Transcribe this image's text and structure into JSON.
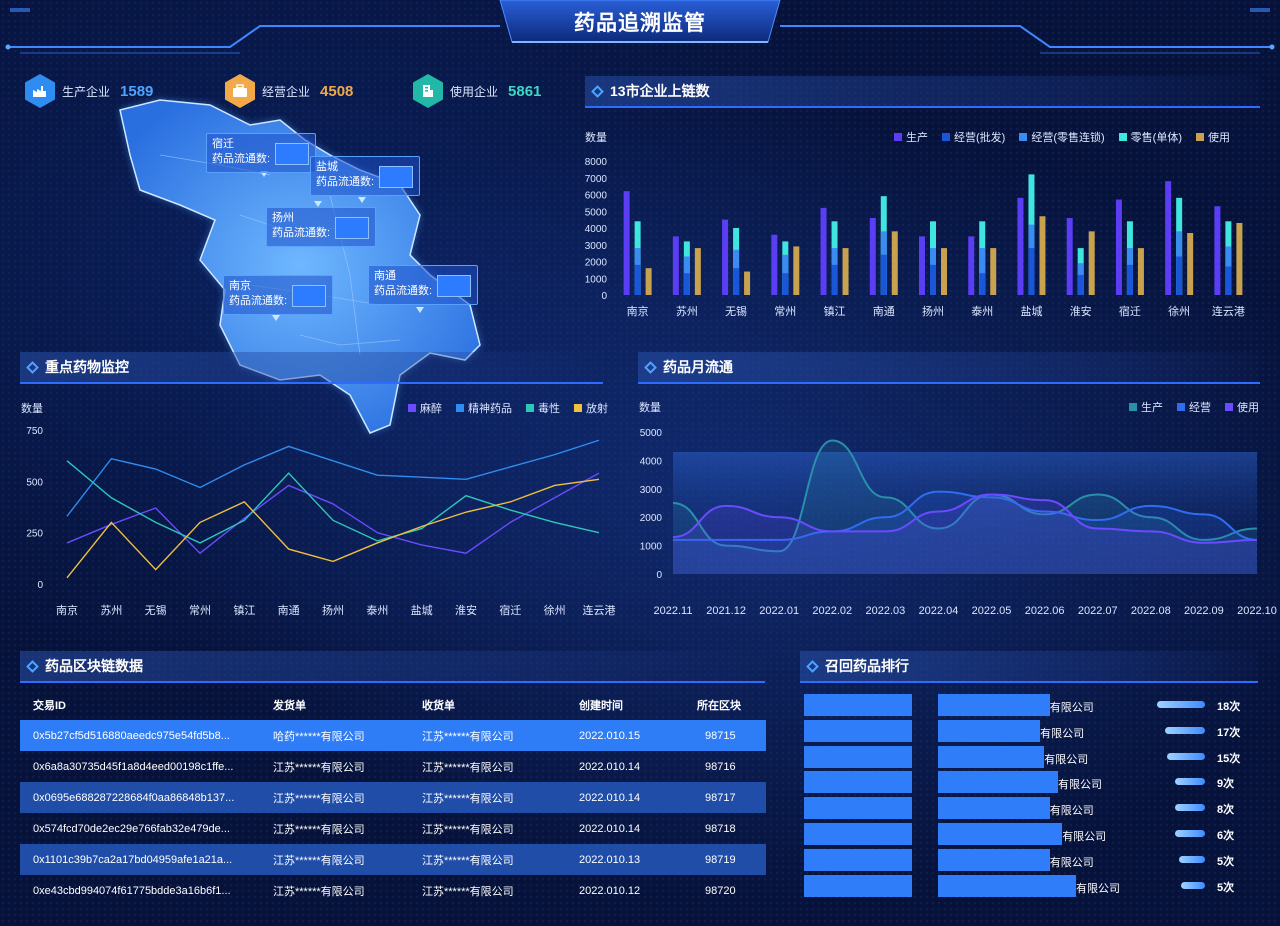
{
  "page_title": "药品追溯监管",
  "kpis": [
    {
      "label": "生产企业",
      "value": "1589",
      "color": "#4da3ff",
      "icon": "factory-icon",
      "icon_bg": "#2f8cf0"
    },
    {
      "label": "经营企业",
      "value": "4508",
      "color": "#f2a94a",
      "icon": "briefcase-icon",
      "icon_bg": "#f2a94a"
    },
    {
      "label": "使用企业",
      "value": "5861",
      "color": "#3fd7c4",
      "icon": "building-icon",
      "icon_bg": "#21b8a8"
    }
  ],
  "map": {
    "cities": [
      {
        "name": "宿迁",
        "label": "药品流通数:"
      },
      {
        "name": "盐城",
        "label": "药品流通数:"
      },
      {
        "name": "扬州",
        "label": "药品流通数:"
      },
      {
        "name": "南京",
        "label": "药品流通数:"
      },
      {
        "name": "南通",
        "label": "药品流通数:"
      }
    ]
  },
  "panels": {
    "chain_title": "13市企业上链数",
    "monitor_title": "重点药物监控",
    "flow_title": "药品月流通",
    "blockchain_title": "药品区块链数据",
    "recall_title": "召回药品排行"
  },
  "chart_data": [
    {
      "type": "bar",
      "ylabel": "数量",
      "ylim": [
        0,
        8000
      ],
      "yticks": [
        "8000",
        "7000",
        "6000",
        "5000",
        "4000",
        "3000",
        "2000",
        "1000",
        "0"
      ],
      "categories": [
        "南京",
        "苏州",
        "无锡",
        "常州",
        "镇江",
        "南通",
        "扬州",
        "泰州",
        "盐城",
        "淮安",
        "宿迁",
        "徐州",
        "连云港"
      ],
      "series": [
        {
          "name": "生产",
          "color": "#5b3df5",
          "values": [
            6200,
            3500,
            4500,
            3600,
            5200,
            4600,
            3500,
            3500,
            5800,
            4600,
            5700,
            6800,
            5300
          ]
        },
        {
          "name": "经营(批发)",
          "color": "#1a56d8",
          "values": [
            1800,
            1300,
            1600,
            1300,
            1800,
            2400,
            1800,
            1300,
            2800,
            1200,
            1800,
            2300,
            1700
          ]
        },
        {
          "name": "经营(零售连锁)",
          "color": "#3a8cf0",
          "values": [
            2800,
            2300,
            2700,
            2400,
            2800,
            3800,
            2800,
            2800,
            4200,
            1900,
            2800,
            3800,
            2900
          ]
        },
        {
          "name": "零售(单体)",
          "color": "#3fe6e0",
          "values": [
            4400,
            3200,
            4000,
            3200,
            4400,
            5900,
            4400,
            4400,
            7200,
            2800,
            4400,
            5800,
            4400
          ]
        },
        {
          "name": "使用",
          "color": "#c9a24f",
          "values": [
            1600,
            2800,
            1400,
            2900,
            2800,
            3800,
            2800,
            2800,
            4700,
            3800,
            2800,
            3700,
            4300
          ]
        }
      ]
    },
    {
      "type": "line",
      "ylabel": "数量",
      "ylim": [
        0,
        750
      ],
      "yticks": [
        "750",
        "500",
        "250",
        "0"
      ],
      "categories": [
        "南京",
        "苏州",
        "无锡",
        "常州",
        "镇江",
        "南通",
        "扬州",
        "泰州",
        "盐城",
        "淮安",
        "宿迁",
        "徐州",
        "连云港"
      ],
      "series": [
        {
          "name": "麻醉",
          "color": "#6a4bff",
          "values": [
            200,
            290,
            370,
            150,
            320,
            480,
            390,
            250,
            190,
            150,
            300,
            420,
            540
          ]
        },
        {
          "name": "精神药品",
          "color": "#2f8cf0",
          "values": [
            330,
            610,
            560,
            470,
            580,
            670,
            600,
            530,
            520,
            510,
            570,
            630,
            700
          ]
        },
        {
          "name": "毒性",
          "color": "#2cc7b8",
          "values": [
            600,
            420,
            300,
            200,
            310,
            540,
            310,
            210,
            270,
            430,
            360,
            300,
            250
          ]
        },
        {
          "name": "放射",
          "color": "#f0c040",
          "values": [
            30,
            300,
            70,
            300,
            400,
            170,
            110,
            200,
            280,
            350,
            400,
            480,
            510
          ]
        }
      ]
    },
    {
      "type": "area",
      "ylabel": "数量",
      "ylim": [
        0,
        5000
      ],
      "yticks": [
        "5000",
        "4000",
        "3000",
        "2000",
        "1000",
        "0"
      ],
      "categories": [
        "2022.11",
        "2021.12",
        "2022.01",
        "2022.02",
        "2022.03",
        "2022.04",
        "2022.05",
        "2022.06",
        "2022.07",
        "2022.08",
        "2022.09",
        "2022.10"
      ],
      "series": [
        {
          "name": "生产",
          "color": "#2a8fa8",
          "values": [
            2500,
            1000,
            800,
            4700,
            2700,
            1600,
            2800,
            2100,
            2800,
            2000,
            1200,
            1600
          ]
        },
        {
          "name": "经营",
          "color": "#2f6cf0",
          "values": [
            1200,
            1200,
            1200,
            1500,
            2000,
            2900,
            2700,
            2200,
            1900,
            2400,
            2100,
            1200
          ]
        },
        {
          "name": "使用",
          "color": "#6a4bff",
          "values": [
            1300,
            2400,
            2000,
            1500,
            1500,
            2200,
            2800,
            2600,
            1600,
            1500,
            1100,
            1200
          ]
        }
      ]
    }
  ],
  "blockchain_table": {
    "headers": [
      "交易ID",
      "发货单",
      "收货单",
      "创建时间",
      "所在区块"
    ],
    "rows": [
      [
        "0x5b27cf5d516880aeedc975e54fd5b8...",
        "哈药******有限公司",
        "江苏******有限公司",
        "2022.010.15",
        "98715"
      ],
      [
        "0x6a8a30735d45f1a8d4eed00198c1ffe...",
        "江苏******有限公司",
        "江苏******有限公司",
        "2022.010.14",
        "98716"
      ],
      [
        "0x0695e688287228684f0aa86848b137...",
        "江苏******有限公司",
        "江苏******有限公司",
        "2022.010.14",
        "98717"
      ],
      [
        "0x574fcd70de2ec29e766fab32e479de...",
        "江苏******有限公司",
        "江苏******有限公司",
        "2022.010.14",
        "98718"
      ],
      [
        "0x1101c39b7ca2a17bd04959afe1a21a...",
        "江苏******有限公司",
        "江苏******有限公司",
        "2022.010.13",
        "98719"
      ],
      [
        "0xe43cbd994074f61775bdde3a16b6f1...",
        "江苏******有限公司",
        "江苏******有限公司",
        "2022.010.12",
        "98720"
      ]
    ]
  },
  "recall": {
    "items": [
      {
        "company": "有限公司",
        "count": "18次",
        "level": 0.81
      },
      {
        "company": "有限公司",
        "count": "17次",
        "level": 0.74
      },
      {
        "company": "有限公司",
        "count": "15次",
        "level": 0.77
      },
      {
        "company": "有限公司",
        "count": "9次",
        "level": 0.87
      },
      {
        "company": "有限公司",
        "count": "8次",
        "level": 0.81
      },
      {
        "company": "有限公司",
        "count": "6次",
        "level": 0.9
      },
      {
        "company": "有限公司",
        "count": "5次",
        "level": 0.81
      },
      {
        "company": "有限公司",
        "count": "5次",
        "level": 1.0
      }
    ]
  }
}
